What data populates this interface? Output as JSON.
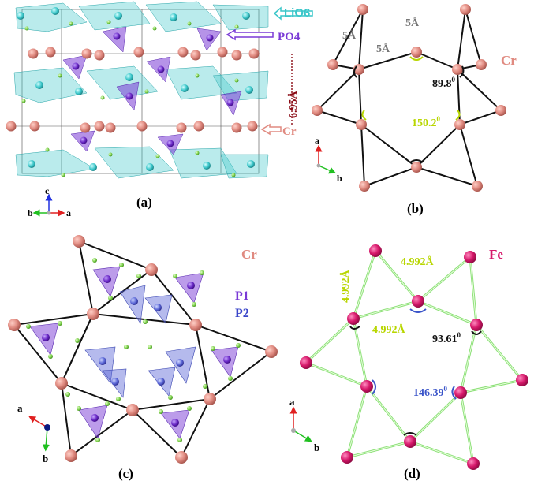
{
  "panels": {
    "a": {
      "caption": "(a)",
      "legend": {
        "lio6": "LiO6",
        "po4": "PO4",
        "cr": "Cr"
      },
      "spacing": "6.95Å",
      "axes": {
        "c": "c",
        "b": "b",
        "a": "a"
      }
    },
    "b": {
      "caption": "(b)",
      "element": "Cr",
      "d1": "5Å",
      "d2": "5Å",
      "d3": "5Å",
      "angle_small": "89.8",
      "angle_large": "150.2",
      "angle_sup": "0",
      "axes": {
        "a": "a",
        "b": "b"
      }
    },
    "c": {
      "caption": "(c)",
      "element": "Cr",
      "p1": "P1",
      "p2": "P2",
      "axes": {
        "a": "a",
        "b": "b"
      }
    },
    "d": {
      "caption": "(d)",
      "element": "Fe",
      "d1": "4.992Å",
      "d2": "4.992Å",
      "d3": "4.992Å",
      "angle_small": "93.61",
      "angle_large": "146.39",
      "angle_sup": "0",
      "axes": {
        "a": "a",
        "b": "b"
      }
    }
  },
  "colors": {
    "cr": "#e08a80",
    "fe": "#d6186a",
    "lio6": "#39c6c9",
    "po4": "#7a3ad6",
    "bond_d": "#8ee07a",
    "angle_b": "#b8d600",
    "angle_d": "#3b55c9"
  }
}
